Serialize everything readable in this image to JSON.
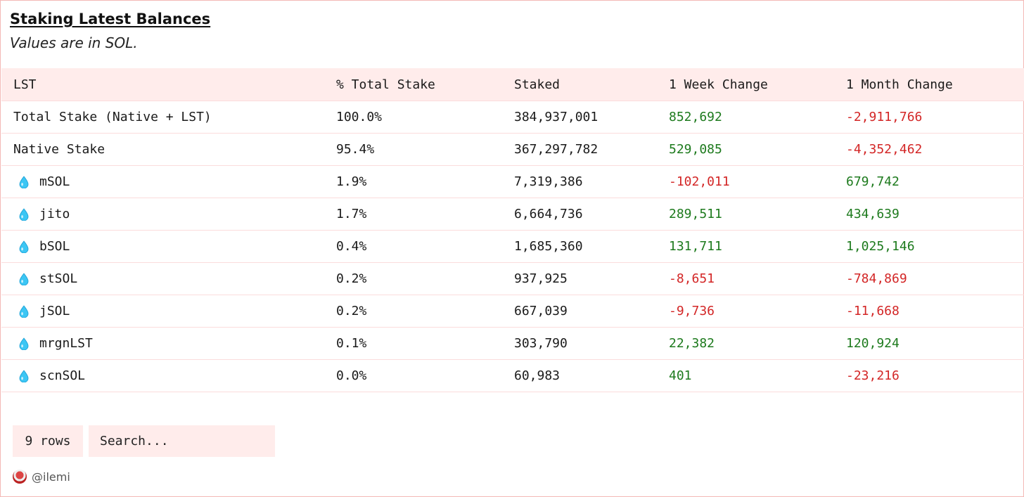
{
  "title": "Staking Latest Balances",
  "subtitle": "Values are in SOL.",
  "columns": [
    "LST",
    "% Total Stake",
    "Staked",
    "1 Week Change",
    "1 Month Change"
  ],
  "rows": [
    {
      "name": "Total Stake (Native + LST)",
      "icon": false,
      "pct": "100.0%",
      "staked": "384,937,001",
      "week": "852,692",
      "month": "-2,911,766"
    },
    {
      "name": "Native Stake",
      "icon": false,
      "pct": "95.4%",
      "staked": "367,297,782",
      "week": "529,085",
      "month": "-4,352,462"
    },
    {
      "name": "mSOL",
      "icon": "droplet-icon",
      "pct": "1.9%",
      "staked": "7,319,386",
      "week": "-102,011",
      "month": "679,742"
    },
    {
      "name": "jito",
      "icon": "droplet-icon",
      "pct": "1.7%",
      "staked": "6,664,736",
      "week": "289,511",
      "month": "434,639"
    },
    {
      "name": "bSOL",
      "icon": "droplet-icon",
      "pct": "0.4%",
      "staked": "1,685,360",
      "week": "131,711",
      "month": "1,025,146"
    },
    {
      "name": "stSOL",
      "icon": "droplet-icon",
      "pct": "0.2%",
      "staked": "937,925",
      "week": "-8,651",
      "month": "-784,869"
    },
    {
      "name": "jSOL",
      "icon": "droplet-icon",
      "pct": "0.2%",
      "staked": "667,039",
      "week": "-9,736",
      "month": "-11,668"
    },
    {
      "name": "mrgnLST",
      "icon": "droplet-icon",
      "pct": "0.1%",
      "staked": "303,790",
      "week": "22,382",
      "month": "120,924"
    },
    {
      "name": "scnSOL",
      "icon": "droplet-icon",
      "pct": "0.0%",
      "staked": "60,983",
      "week": "401",
      "month": "-23,216"
    }
  ],
  "controls": {
    "rows_label": "9 rows",
    "search_placeholder": "Search..."
  },
  "credit": {
    "handle": "@ilemi"
  },
  "colors": {
    "positive": "#1d7a1d",
    "negative": "#d32626",
    "header_bg": "#ffeceb",
    "border": "#f4b9b6"
  }
}
